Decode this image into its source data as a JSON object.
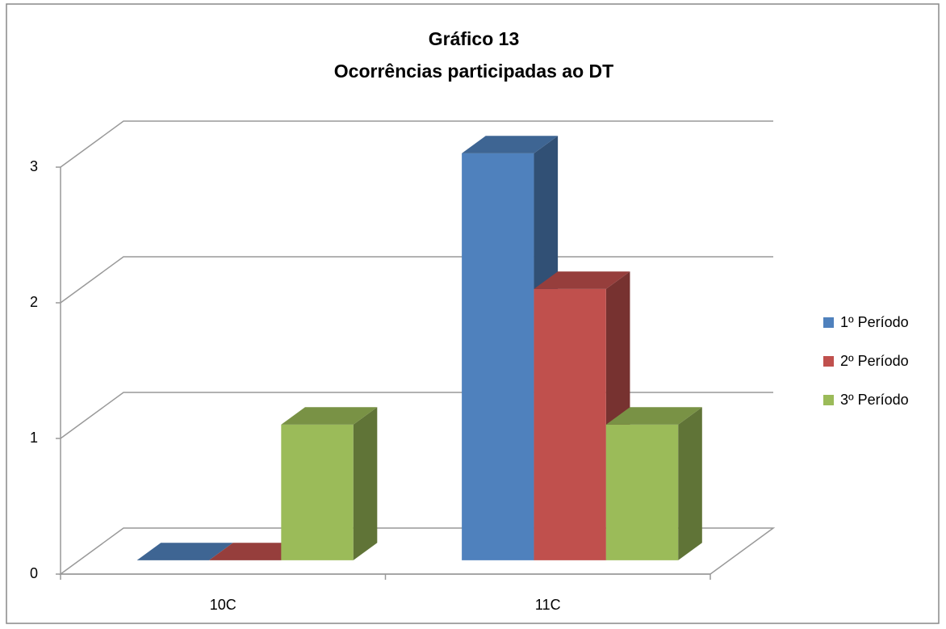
{
  "chart_data": {
    "type": "bar3d",
    "title": "Gráfico 13",
    "subtitle": "Ocorrências participadas ao DT",
    "categories": [
      "10C",
      "11C"
    ],
    "series": [
      {
        "name": "1º Período",
        "color": "#4f81bd",
        "values": [
          0,
          3
        ]
      },
      {
        "name": "2º Período",
        "color": "#c0504d",
        "values": [
          0,
          2
        ]
      },
      {
        "name": "3º Período",
        "color": "#9bbb59",
        "values": [
          1,
          1
        ]
      }
    ],
    "ylim": [
      0,
      3
    ],
    "yticks": [
      0,
      1,
      2,
      3
    ],
    "grid": true,
    "legend": "right"
  }
}
